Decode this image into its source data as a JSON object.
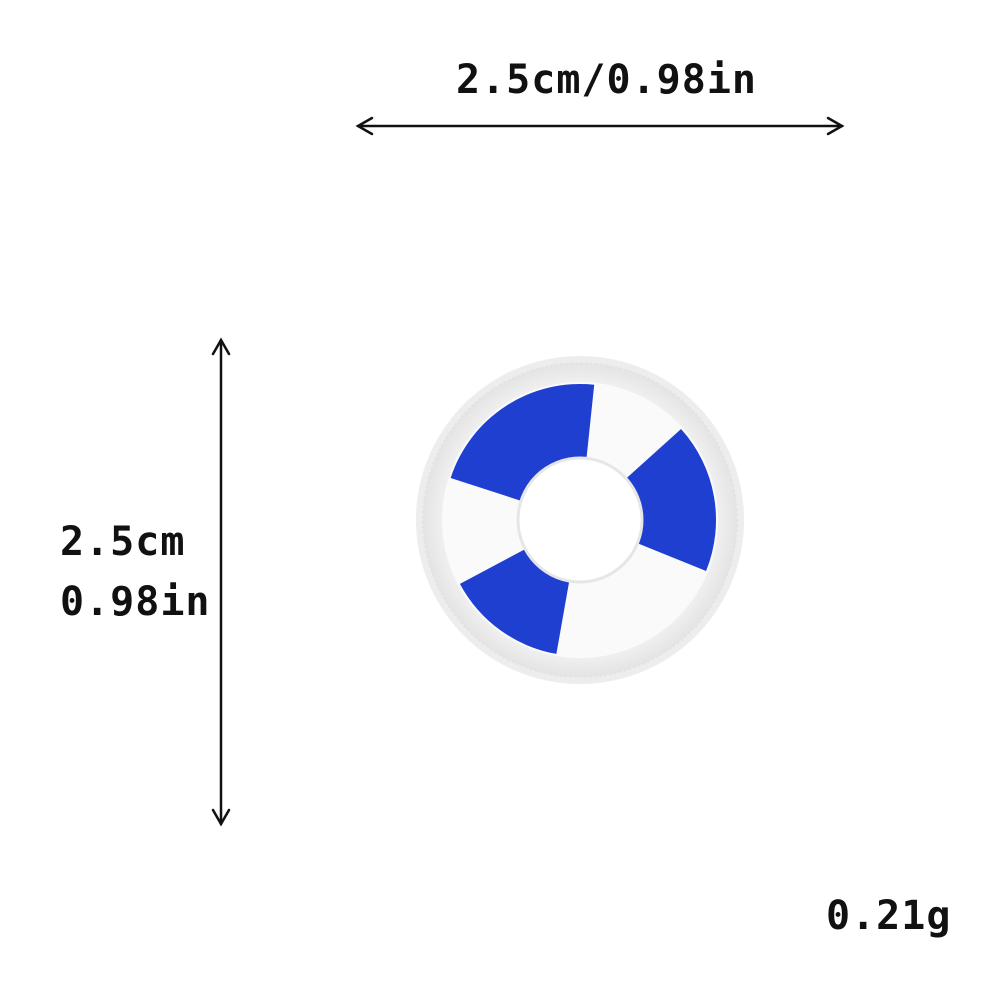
{
  "dimensions": {
    "width_label": "2.5cm/0.98in",
    "height_label_cm": "2.5cm",
    "height_label_in": "0.98in"
  },
  "weight": {
    "label": "0.21g"
  },
  "product": {
    "icon": "lifebuoy-patch-icon",
    "colors": {
      "ring": "#f6f6f6",
      "stitch_border": "#e8e8e8",
      "stripe": "#1f3fd1",
      "stripe_dark": "#1530b0",
      "background": "#ffffff"
    }
  },
  "arrows": {
    "color": "#111111"
  }
}
